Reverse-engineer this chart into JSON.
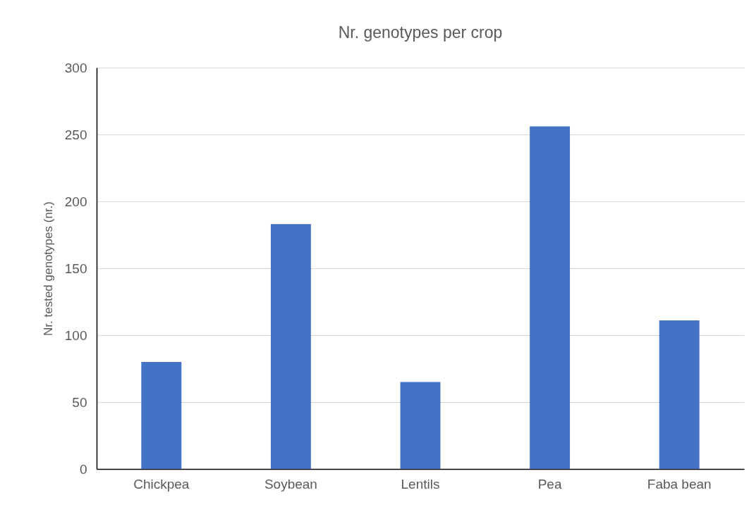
{
  "chart_data": {
    "type": "bar",
    "title": "Nr. genotypes per crop",
    "ylabel": "Nr. tested genotypes (nr.)",
    "categories": [
      "Chickpea",
      "Soybean",
      "Lentils",
      "Pea",
      "Faba bean"
    ],
    "values": [
      80,
      183,
      65,
      256,
      111
    ],
    "color": "#4472c4",
    "ylim": [
      0,
      300
    ],
    "yticks": [
      0,
      50,
      100,
      150,
      200,
      250,
      300
    ],
    "grid": "y"
  }
}
